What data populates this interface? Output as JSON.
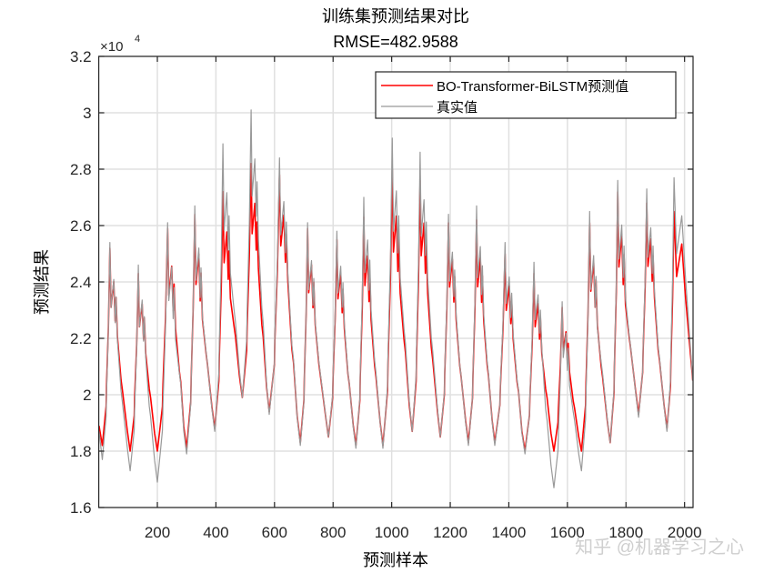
{
  "chart_data": {
    "type": "line",
    "title": "训练集预测结果对比",
    "subtitle": "RMSE=482.9588",
    "xlabel": "预测样本",
    "ylabel": "预测结果",
    "y_exponent_label": "×10",
    "y_exponent_power": "4",
    "xlim": [
      1,
      2029
    ],
    "ylim": [
      16000,
      32000
    ],
    "x_ticks": [
      200,
      400,
      600,
      800,
      1000,
      1200,
      1400,
      1600,
      1800,
      2000
    ],
    "x_tick_labels": [
      "200",
      "400",
      "600",
      "800",
      "1000",
      "1200",
      "1400",
      "1600",
      "1800",
      "2000"
    ],
    "y_ticks": [
      16000,
      18000,
      20000,
      22000,
      24000,
      26000,
      28000,
      30000,
      32000
    ],
    "y_tick_labels": [
      "1.6",
      "1.8",
      "2",
      "2.2",
      "2.4",
      "2.6",
      "2.8",
      "3",
      "3.2"
    ],
    "grid": true,
    "legend_placement": "top-right",
    "series": [
      {
        "name": "BO-Transformer-BiLSTM预测值",
        "color": "#ff0000",
        "start": [
          1,
          18900
        ],
        "end": [
          2028,
          20500
        ],
        "troughs": [
          [
            12,
            18200
          ],
          [
            107,
            18000
          ],
          [
            200,
            18000
          ],
          [
            300,
            18100
          ],
          [
            396,
            18800
          ],
          [
            490,
            19900
          ],
          [
            582,
            19400
          ],
          [
            688,
            18300
          ],
          [
            784,
            18500
          ],
          [
            878,
            18200
          ],
          [
            970,
            18200
          ],
          [
            1070,
            18700
          ],
          [
            1166,
            18500
          ],
          [
            1262,
            18300
          ],
          [
            1352,
            18300
          ],
          [
            1455,
            18000
          ],
          [
            1554,
            18000
          ],
          [
            1648,
            18000
          ],
          [
            1746,
            18300
          ],
          [
            1843,
            19300
          ],
          [
            1940,
            18800
          ]
        ],
        "peaks": [
          [
            38,
            25200
          ],
          [
            135,
            24300
          ],
          [
            235,
            25900
          ],
          [
            328,
            26400
          ],
          [
            424,
            27200
          ],
          [
            520,
            28200
          ],
          [
            617,
            27800
          ],
          [
            713,
            25900
          ],
          [
            813,
            25500
          ],
          [
            905,
            26300
          ],
          [
            1002,
            28000
          ],
          [
            1097,
            27600
          ],
          [
            1194,
            26100
          ],
          [
            1290,
            26200
          ],
          [
            1387,
            25000
          ],
          [
            1486,
            24300
          ],
          [
            1582,
            23100
          ],
          [
            1676,
            26100
          ],
          [
            1772,
            27200
          ],
          [
            1871,
            26800
          ],
          [
            1964,
            26500
          ]
        ]
      },
      {
        "name": "真实值",
        "color": "#999999",
        "start": [
          1,
          18700
        ],
        "end": [
          2028,
          20500
        ],
        "troughs": [
          [
            12,
            17700
          ],
          [
            107,
            17300
          ],
          [
            200,
            16900
          ],
          [
            300,
            17900
          ],
          [
            396,
            18700
          ],
          [
            490,
            19900
          ],
          [
            582,
            19300
          ],
          [
            688,
            18200
          ],
          [
            784,
            18500
          ],
          [
            878,
            18100
          ],
          [
            970,
            18100
          ],
          [
            1070,
            18700
          ],
          [
            1166,
            18500
          ],
          [
            1262,
            18200
          ],
          [
            1352,
            18200
          ],
          [
            1455,
            17900
          ],
          [
            1554,
            16700
          ],
          [
            1648,
            17300
          ],
          [
            1746,
            18300
          ],
          [
            1843,
            19200
          ],
          [
            1940,
            18700
          ]
        ],
        "peaks": [
          [
            38,
            25400
          ],
          [
            135,
            24600
          ],
          [
            235,
            26100
          ],
          [
            328,
            26700
          ],
          [
            424,
            28900
          ],
          [
            520,
            30100
          ],
          [
            617,
            28400
          ],
          [
            713,
            26100
          ],
          [
            813,
            25800
          ],
          [
            905,
            27000
          ],
          [
            1002,
            29100
          ],
          [
            1097,
            28600
          ],
          [
            1194,
            26400
          ],
          [
            1290,
            26700
          ],
          [
            1387,
            25400
          ],
          [
            1486,
            24700
          ],
          [
            1582,
            23300
          ],
          [
            1676,
            26500
          ],
          [
            1772,
            27600
          ],
          [
            1871,
            27300
          ],
          [
            1964,
            27700
          ]
        ]
      }
    ]
  },
  "watermark": "知乎 @机器学习之心"
}
